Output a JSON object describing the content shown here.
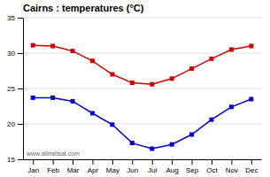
{
  "chart_data": {
    "type": "line",
    "title": "Cairns : temperatures (°C)",
    "categories": [
      "Jan",
      "Feb",
      "Mar",
      "Apr",
      "May",
      "Jun",
      "Jul",
      "Aug",
      "Sep",
      "Oct",
      "Nov",
      "Dec"
    ],
    "series": [
      {
        "color": "#cc0000",
        "marker": "square",
        "values": [
          31.1,
          31.0,
          30.3,
          28.9,
          27.0,
          25.8,
          25.6,
          26.4,
          27.8,
          29.2,
          30.5,
          31.0
        ]
      },
      {
        "color": "#0000cc",
        "marker": "square",
        "values": [
          23.7,
          23.7,
          23.2,
          21.5,
          19.9,
          17.3,
          16.5,
          17.1,
          18.5,
          20.6,
          22.4,
          23.5
        ]
      }
    ],
    "ylim": [
      15,
      35
    ],
    "yticks": [
      15,
      20,
      25,
      30,
      35
    ],
    "grid": true,
    "annotations": [
      "www.allmetsat.com"
    ]
  }
}
